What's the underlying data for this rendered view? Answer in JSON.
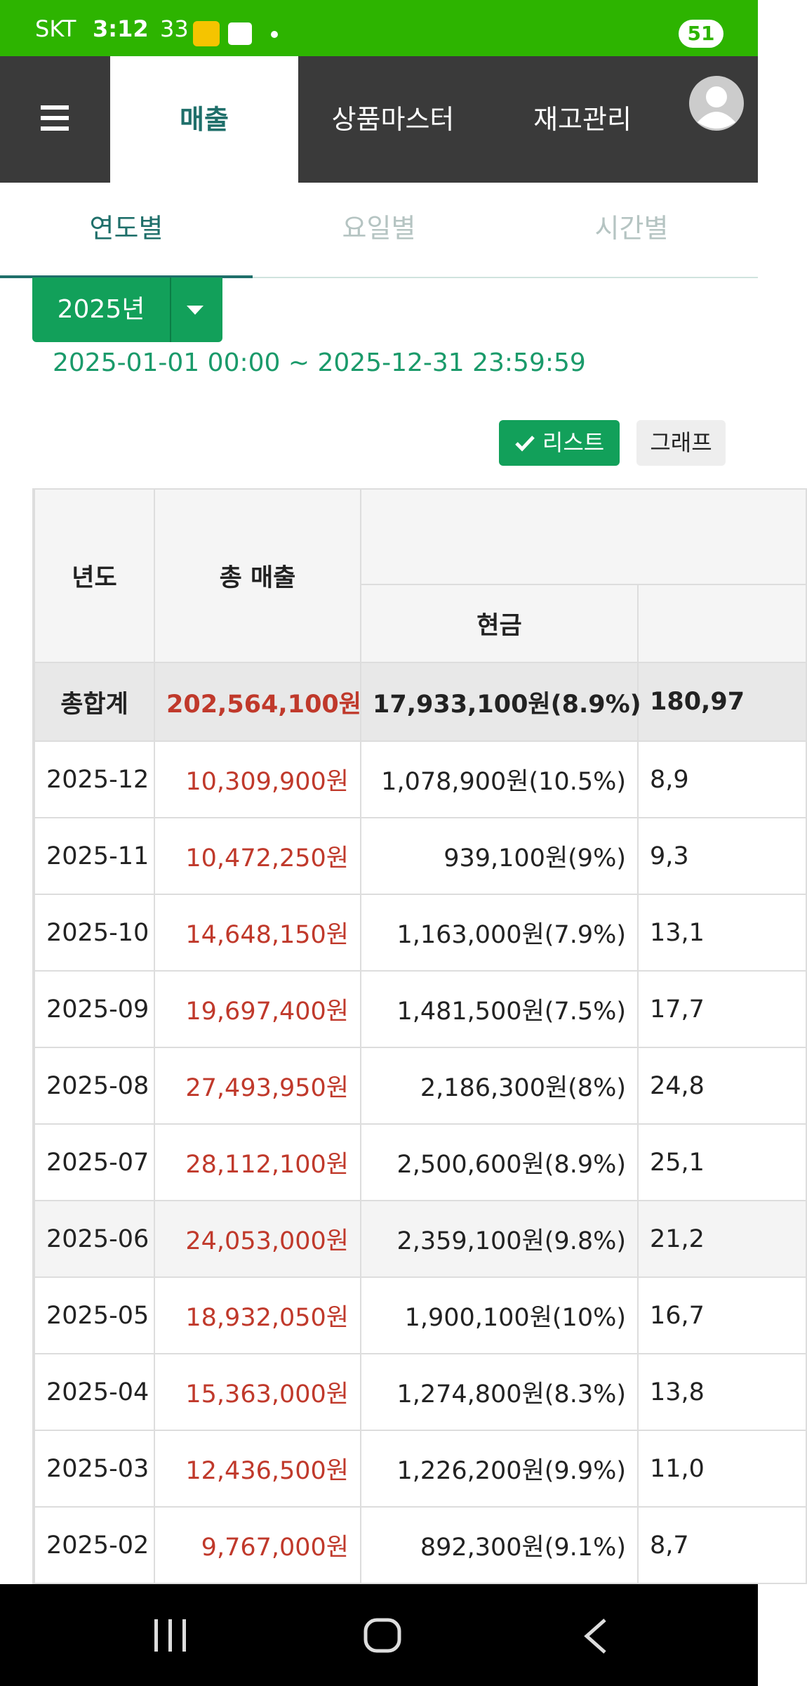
{
  "status_bar": {
    "carrier": "SKT",
    "time": "3:12",
    "temp": "33",
    "battery": "51"
  },
  "nav": {
    "tabs": [
      "매출",
      "상품마스터",
      "재고관리"
    ]
  },
  "sub_tabs": [
    "연도별",
    "요일별",
    "시간별"
  ],
  "year_select": "2025년",
  "date_range": "2025-01-01 00:00 ~ 2025-12-31 23:59:59",
  "buttons": [
    "리스트",
    "그래프"
  ],
  "table": {
    "headers": [
      "년도",
      "총 매출",
      "현금"
    ],
    "total": [
      "총합계",
      "202,564,100원",
      "17,933,100원(8.9%)",
      "180,97"
    ],
    "rows": [
      [
        "2025-12",
        "10,309,900원",
        "1,078,900원(10.5%)",
        "8,9"
      ],
      [
        "2025-11",
        "10,472,250원",
        "939,100원(9%)",
        "9,3"
      ],
      [
        "2025-10",
        "14,648,150원",
        "1,163,000원(7.9%)",
        "13,1"
      ],
      [
        "2025-09",
        "19,697,400원",
        "1,481,500원(7.5%)",
        "17,7"
      ],
      [
        "2025-08",
        "27,493,950원",
        "2,186,300원(8%)",
        "24,8"
      ],
      [
        "2025-07",
        "28,112,100원",
        "2,500,600원(8.9%)",
        "25,1"
      ],
      [
        "2025-06",
        "24,053,000원",
        "2,359,100원(9.8%)",
        "21,2"
      ],
      [
        "2025-05",
        "18,932,050원",
        "1,900,100원(10%)",
        "16,7"
      ],
      [
        "2025-04",
        "15,363,000원",
        "1,274,800원(8.3%)",
        "13,8"
      ],
      [
        "2025-03",
        "12,436,500원",
        "1,226,200원(9.9%)",
        "11,0"
      ],
      [
        "2025-02",
        "9,767,000원",
        "892,300원(9.1%)",
        "8,7"
      ]
    ]
  }
}
